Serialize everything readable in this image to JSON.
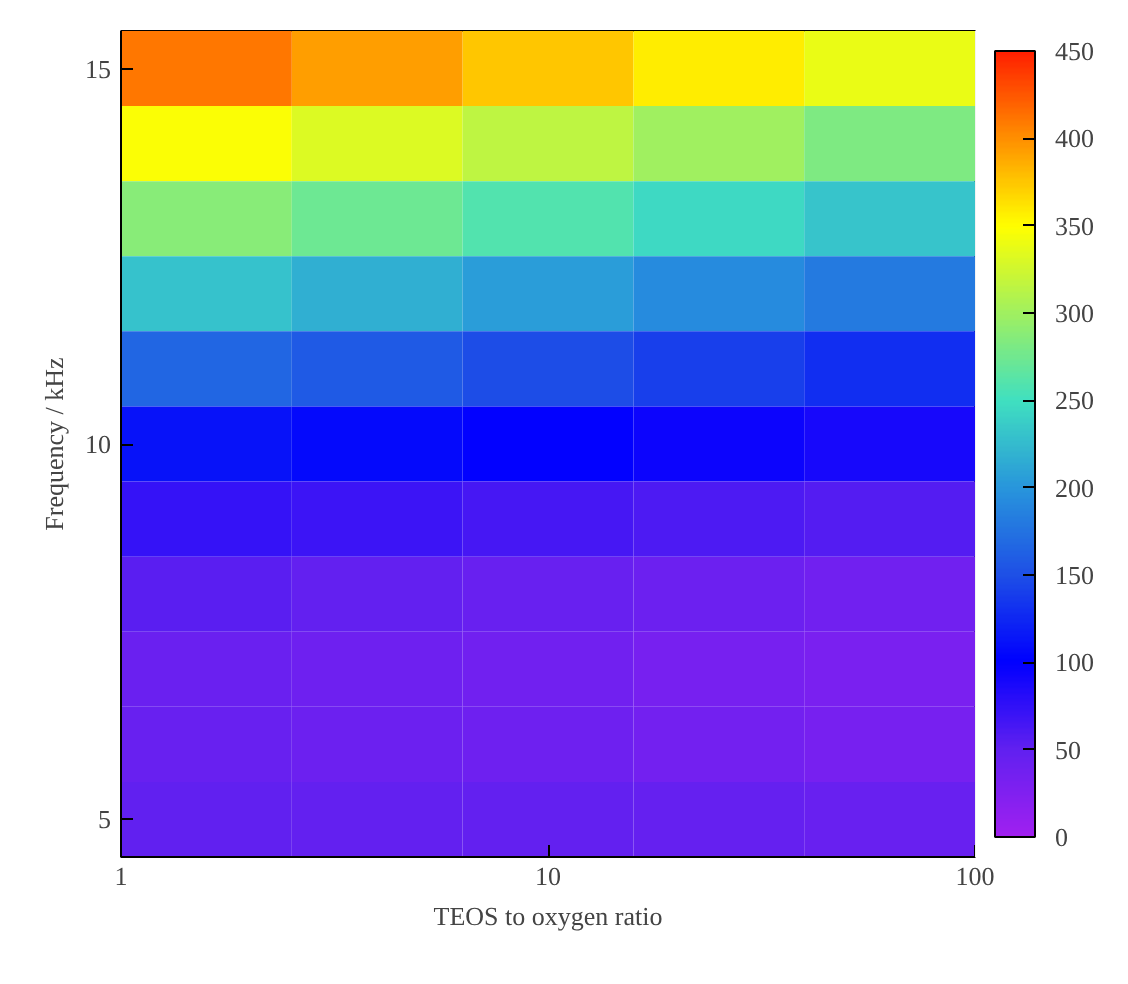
{
  "chart_data": {
    "type": "heatmap",
    "xlabel": "TEOS to oxygen ratio",
    "ylabel": "Frequency / kHz",
    "x": [
      1.585,
      3.981,
      10,
      25.12,
      63.1
    ],
    "y_categories": [
      "15",
      null,
      null,
      null,
      null,
      "10",
      null,
      null,
      null,
      null,
      "5"
    ],
    "cells": [
      [
        411,
        393,
        375,
        357,
        339
      ],
      [
        347,
        331,
        315,
        299,
        283
      ],
      [
        288,
        274,
        260,
        246,
        232
      ],
      [
        229,
        217,
        205,
        193,
        181
      ],
      [
        166,
        157,
        148,
        139,
        130
      ],
      [
        112,
        106,
        100,
        94,
        88
      ],
      [
        73,
        69,
        65,
        61,
        57
      ],
      [
        53,
        49,
        45,
        41,
        37
      ],
      [
        43,
        40,
        37,
        33,
        30
      ],
      [
        44,
        41,
        39,
        36,
        33
      ],
      [
        50,
        49,
        48,
        46,
        45
      ]
    ],
    "xlim": [
      1,
      100
    ],
    "xticks": [
      1,
      10,
      100
    ],
    "log": "x",
    "clim": [
      0,
      450
    ],
    "cticks": [
      0,
      50,
      100,
      150,
      200,
      250,
      300,
      350,
      400,
      450
    ],
    "grid": false
  }
}
